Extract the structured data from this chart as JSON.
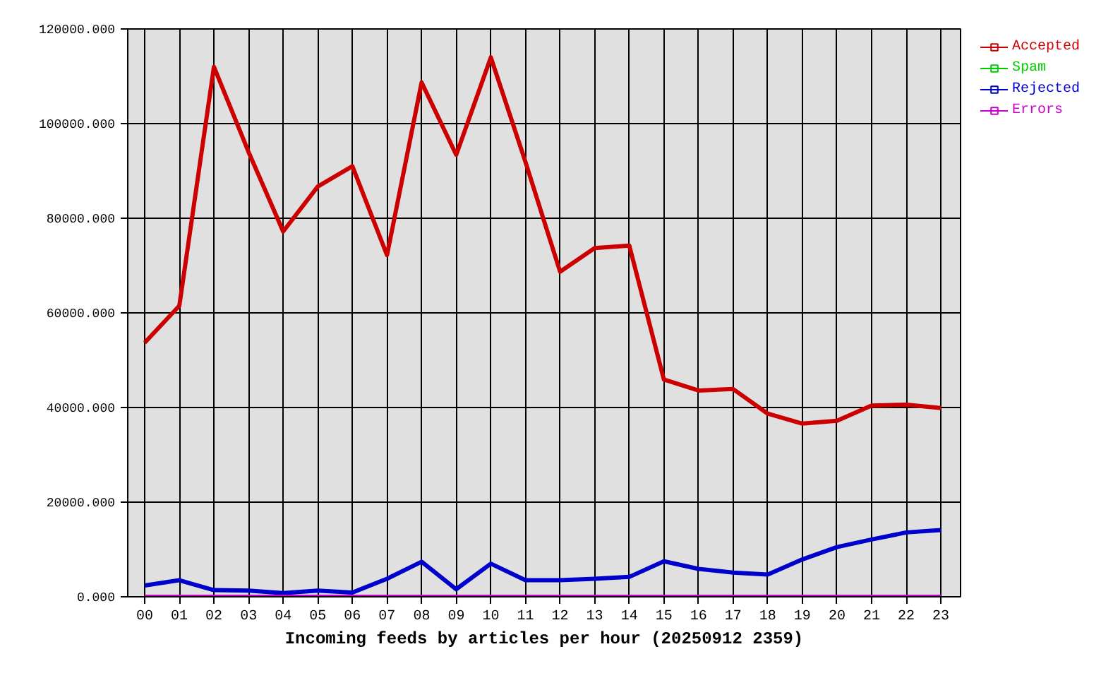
{
  "chart_data": {
    "type": "line",
    "xlabel": "Incoming feeds by articles per hour (20250912 2359)",
    "categories": [
      "00",
      "01",
      "02",
      "03",
      "04",
      "05",
      "06",
      "07",
      "08",
      "09",
      "10",
      "11",
      "12",
      "13",
      "14",
      "15",
      "16",
      "17",
      "18",
      "19",
      "20",
      "21",
      "22",
      "23"
    ],
    "series": [
      {
        "name": "Accepted",
        "color": "#cc0000",
        "values": [
          53700,
          61500,
          112000,
          94000,
          77200,
          86700,
          91000,
          72200,
          108700,
          93400,
          114000,
          91900,
          68700,
          73700,
          74200,
          45900,
          43600,
          43900,
          38700,
          36600,
          37200,
          40400,
          40600,
          39900
        ]
      },
      {
        "name": "Spam",
        "color": "#00cc00",
        "values": [
          null,
          null,
          null,
          null,
          null,
          null,
          null,
          null,
          null,
          null,
          null,
          null,
          null,
          null,
          null,
          null,
          null,
          null,
          null,
          null,
          null,
          null,
          null,
          null
        ]
      },
      {
        "name": "Rejected",
        "color": "#0000cc",
        "values": [
          2400,
          3500,
          1400,
          1300,
          800,
          1300,
          900,
          3800,
          7400,
          1600,
          7000,
          3500,
          3500,
          3800,
          4200,
          7500,
          5900,
          5100,
          4700,
          7900,
          10500,
          12100,
          13600,
          14100
        ]
      },
      {
        "name": "Errors",
        "color": "#cc00cc",
        "values": [
          0,
          0,
          0,
          0,
          0,
          0,
          0,
          0,
          0,
          0,
          0,
          0,
          0,
          0,
          0,
          0,
          0,
          0,
          0,
          0,
          0,
          0,
          0,
          0
        ]
      }
    ],
    "ylim": [
      0,
      120000
    ],
    "yticks": [
      {
        "value": 0,
        "label": "0.000"
      },
      {
        "value": 20000,
        "label": "20000.000"
      },
      {
        "value": 40000,
        "label": "40000.000"
      },
      {
        "value": 60000,
        "label": "60000.000"
      },
      {
        "value": 80000,
        "label": "80000.000"
      },
      {
        "value": 100000,
        "label": "100000.000"
      },
      {
        "value": 120000,
        "label": "120000.000"
      }
    ],
    "grid": true,
    "legend": "top right"
  }
}
